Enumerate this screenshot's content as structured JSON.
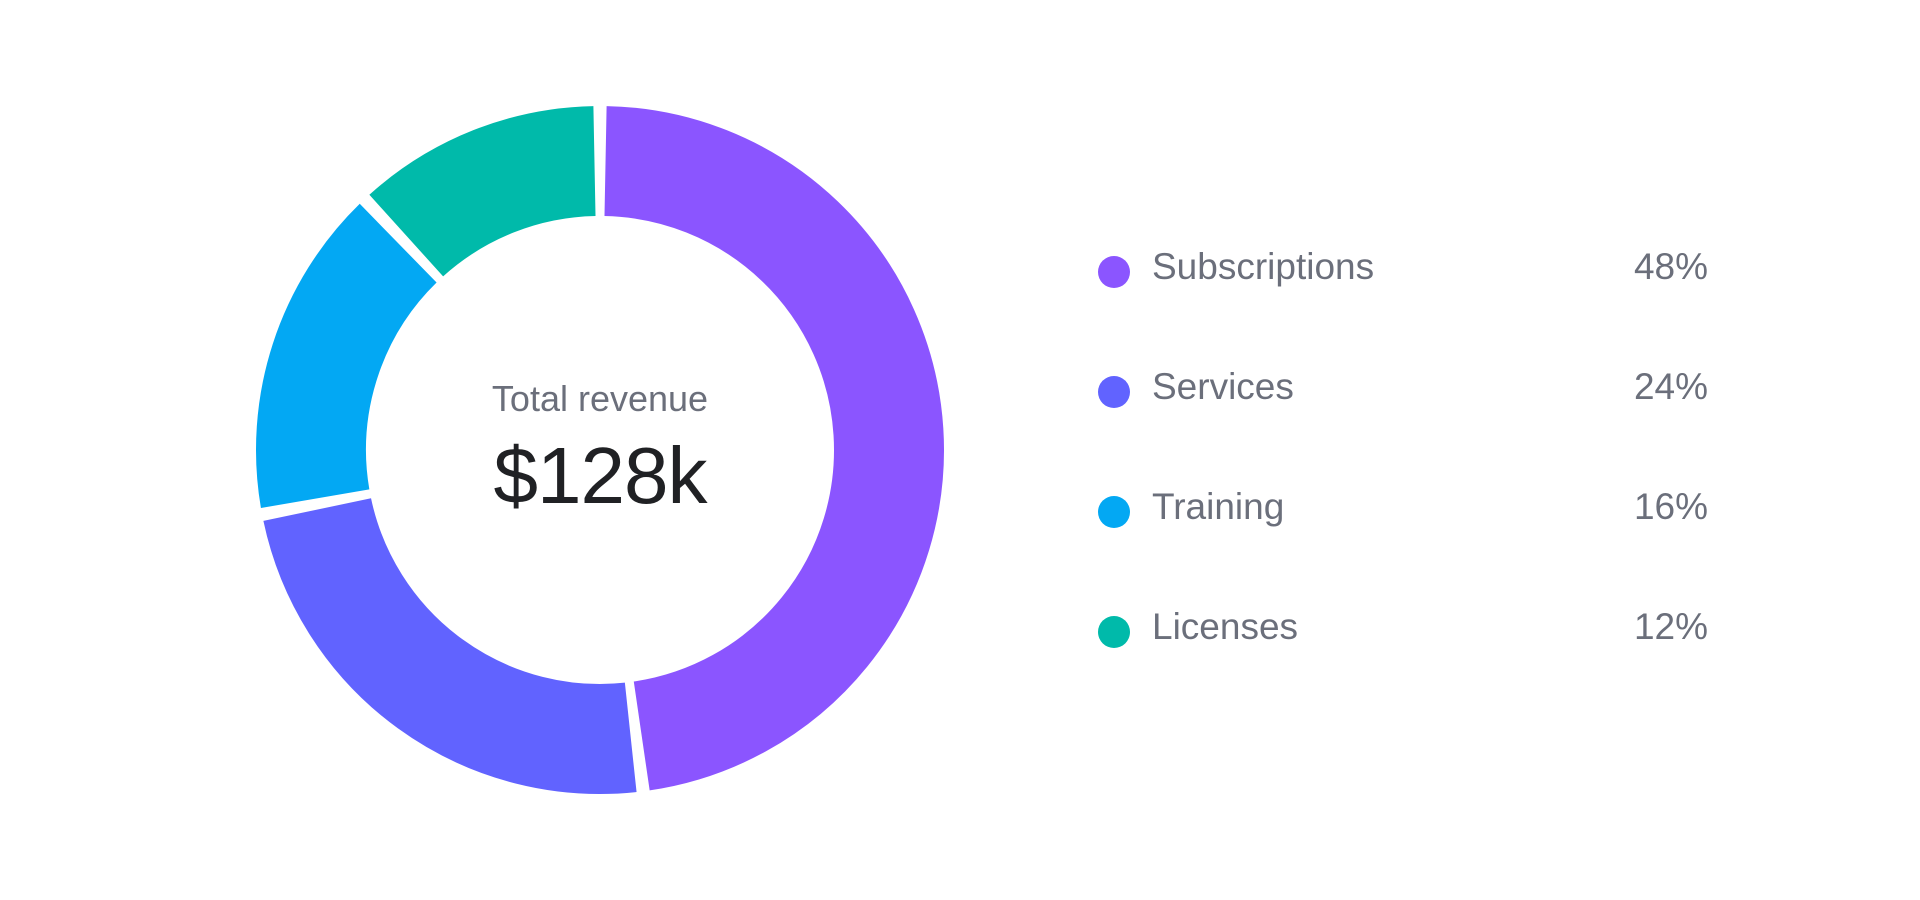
{
  "chart_data": {
    "type": "pie",
    "variant": "donut",
    "center": {
      "label": "Total revenue",
      "value": "$128k"
    },
    "categories": [
      "Subscriptions",
      "Services",
      "Training",
      "Licenses"
    ],
    "values": [
      48,
      24,
      16,
      12
    ],
    "value_labels": [
      "48%",
      "24%",
      "16%",
      "12%"
    ],
    "colors": [
      "#8B55FF",
      "#6163FF",
      "#03A8F3",
      "#00BAAA"
    ],
    "legend_position": "right"
  }
}
